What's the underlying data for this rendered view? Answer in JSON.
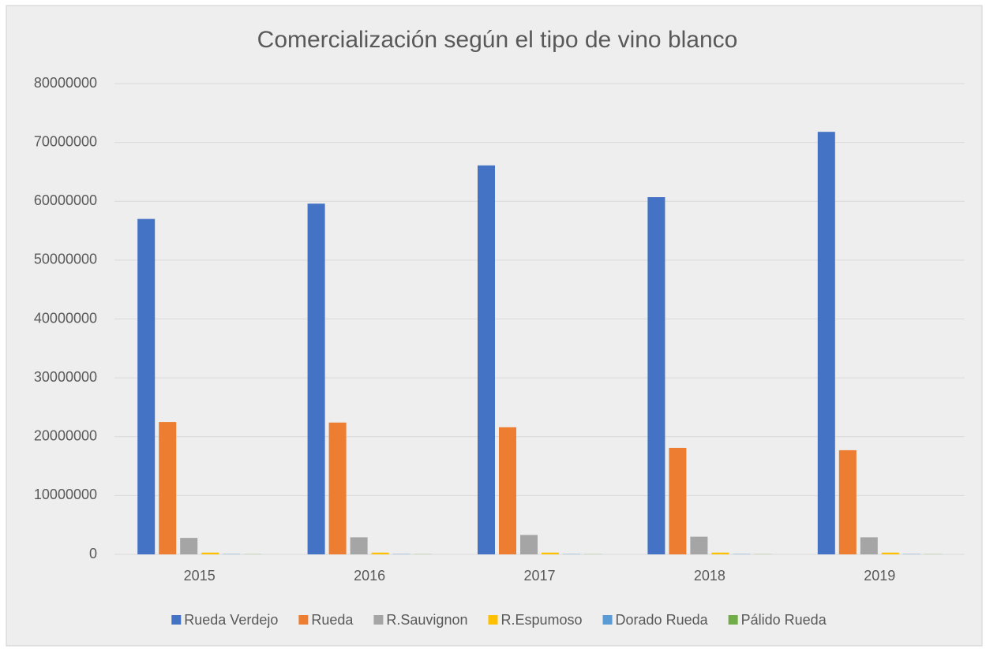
{
  "chart_data": {
    "type": "bar",
    "title": "Comercialización según el tipo de vino blanco",
    "categories": [
      "2015",
      "2016",
      "2017",
      "2018",
      "2019"
    ],
    "series": [
      {
        "name": "Rueda Verdejo",
        "color": "#4472c4",
        "values": [
          57000000,
          59600000,
          66100000,
          60700000,
          71800000
        ]
      },
      {
        "name": "Rueda",
        "color": "#ed7d31",
        "values": [
          22500000,
          22400000,
          21600000,
          18100000,
          17700000
        ]
      },
      {
        "name": "R.Sauvignon",
        "color": "#a5a5a5",
        "values": [
          2800000,
          2900000,
          3300000,
          3000000,
          2900000
        ]
      },
      {
        "name": "R.Espumoso",
        "color": "#ffc000",
        "values": [
          300000,
          300000,
          300000,
          300000,
          300000
        ]
      },
      {
        "name": "Dorado Rueda",
        "color": "#5b9bd5",
        "values": [
          50000,
          50000,
          50000,
          50000,
          50000
        ]
      },
      {
        "name": "Pálido Rueda",
        "color": "#70ad47",
        "values": [
          30000,
          30000,
          30000,
          30000,
          30000
        ]
      }
    ],
    "ylim": [
      0,
      80000000
    ],
    "yticks": [
      0,
      10000000,
      20000000,
      30000000,
      40000000,
      50000000,
      60000000,
      70000000,
      80000000
    ],
    "grid": true,
    "legend": "bottom"
  }
}
